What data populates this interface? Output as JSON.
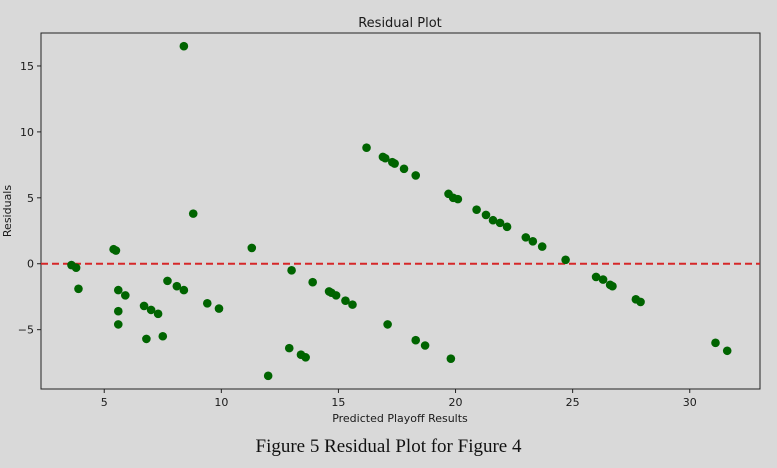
{
  "chart_data": {
    "type": "scatter",
    "title": "Residual Plot",
    "xlabel": "Predicted Playoff Results",
    "ylabel": "Residuals",
    "xlim": [
      2.3,
      33.0
    ],
    "ylim": [
      -9.5,
      17.5
    ],
    "xticks": [
      5,
      10,
      15,
      20,
      25,
      30
    ],
    "yticks": [
      -5,
      0,
      5,
      10,
      15
    ],
    "grid": false,
    "point_color": "#006400",
    "reference_line": {
      "y": 0,
      "color": "#d62728",
      "style": "dashed"
    },
    "points": [
      {
        "x": 3.6,
        "y": -0.1
      },
      {
        "x": 3.8,
        "y": -0.3
      },
      {
        "x": 3.9,
        "y": -1.9
      },
      {
        "x": 5.4,
        "y": 1.1
      },
      {
        "x": 5.5,
        "y": 1.0
      },
      {
        "x": 5.6,
        "y": -2.0
      },
      {
        "x": 5.6,
        "y": -4.6
      },
      {
        "x": 5.6,
        "y": -3.6
      },
      {
        "x": 5.9,
        "y": -2.4
      },
      {
        "x": 6.7,
        "y": -3.2
      },
      {
        "x": 6.8,
        "y": -5.7
      },
      {
        "x": 7.0,
        "y": -3.5
      },
      {
        "x": 7.3,
        "y": -3.8
      },
      {
        "x": 7.5,
        "y": -5.5
      },
      {
        "x": 7.7,
        "y": -1.3
      },
      {
        "x": 8.1,
        "y": -1.7
      },
      {
        "x": 8.4,
        "y": -2.0
      },
      {
        "x": 8.4,
        "y": 16.5
      },
      {
        "x": 8.8,
        "y": 3.8
      },
      {
        "x": 9.4,
        "y": -3.0
      },
      {
        "x": 9.9,
        "y": -3.4
      },
      {
        "x": 11.3,
        "y": 1.2
      },
      {
        "x": 12.0,
        "y": -8.5
      },
      {
        "x": 12.9,
        "y": -6.4
      },
      {
        "x": 13.0,
        "y": -0.5
      },
      {
        "x": 13.4,
        "y": -6.9
      },
      {
        "x": 13.6,
        "y": -7.1
      },
      {
        "x": 13.9,
        "y": -1.4
      },
      {
        "x": 14.6,
        "y": -2.1
      },
      {
        "x": 14.7,
        "y": -2.2
      },
      {
        "x": 14.9,
        "y": -2.4
      },
      {
        "x": 15.3,
        "y": -2.8
      },
      {
        "x": 15.6,
        "y": -3.1
      },
      {
        "x": 16.2,
        "y": 8.8
      },
      {
        "x": 16.9,
        "y": 8.1
      },
      {
        "x": 17.0,
        "y": 8.0
      },
      {
        "x": 17.1,
        "y": -4.6
      },
      {
        "x": 17.3,
        "y": 7.7
      },
      {
        "x": 17.4,
        "y": 7.6
      },
      {
        "x": 17.8,
        "y": 7.2
      },
      {
        "x": 18.3,
        "y": 6.7
      },
      {
        "x": 18.3,
        "y": -5.8
      },
      {
        "x": 18.7,
        "y": -6.2
      },
      {
        "x": 19.7,
        "y": 5.3
      },
      {
        "x": 19.8,
        "y": -7.2
      },
      {
        "x": 19.9,
        "y": 5.0
      },
      {
        "x": 20.1,
        "y": 4.9
      },
      {
        "x": 20.9,
        "y": 4.1
      },
      {
        "x": 21.3,
        "y": 3.7
      },
      {
        "x": 21.6,
        "y": 3.3
      },
      {
        "x": 21.9,
        "y": 3.1
      },
      {
        "x": 22.2,
        "y": 2.8
      },
      {
        "x": 23.0,
        "y": 2.0
      },
      {
        "x": 23.3,
        "y": 1.7
      },
      {
        "x": 23.7,
        "y": 1.3
      },
      {
        "x": 24.7,
        "y": 0.3
      },
      {
        "x": 26.0,
        "y": -1.0
      },
      {
        "x": 26.3,
        "y": -1.2
      },
      {
        "x": 26.6,
        "y": -1.6
      },
      {
        "x": 26.7,
        "y": -1.7
      },
      {
        "x": 27.7,
        "y": -2.7
      },
      {
        "x": 27.9,
        "y": -2.9
      },
      {
        "x": 31.1,
        "y": -6.0
      },
      {
        "x": 31.6,
        "y": -6.6
      }
    ]
  },
  "caption": "Figure 5 Residual Plot for Figure 4"
}
